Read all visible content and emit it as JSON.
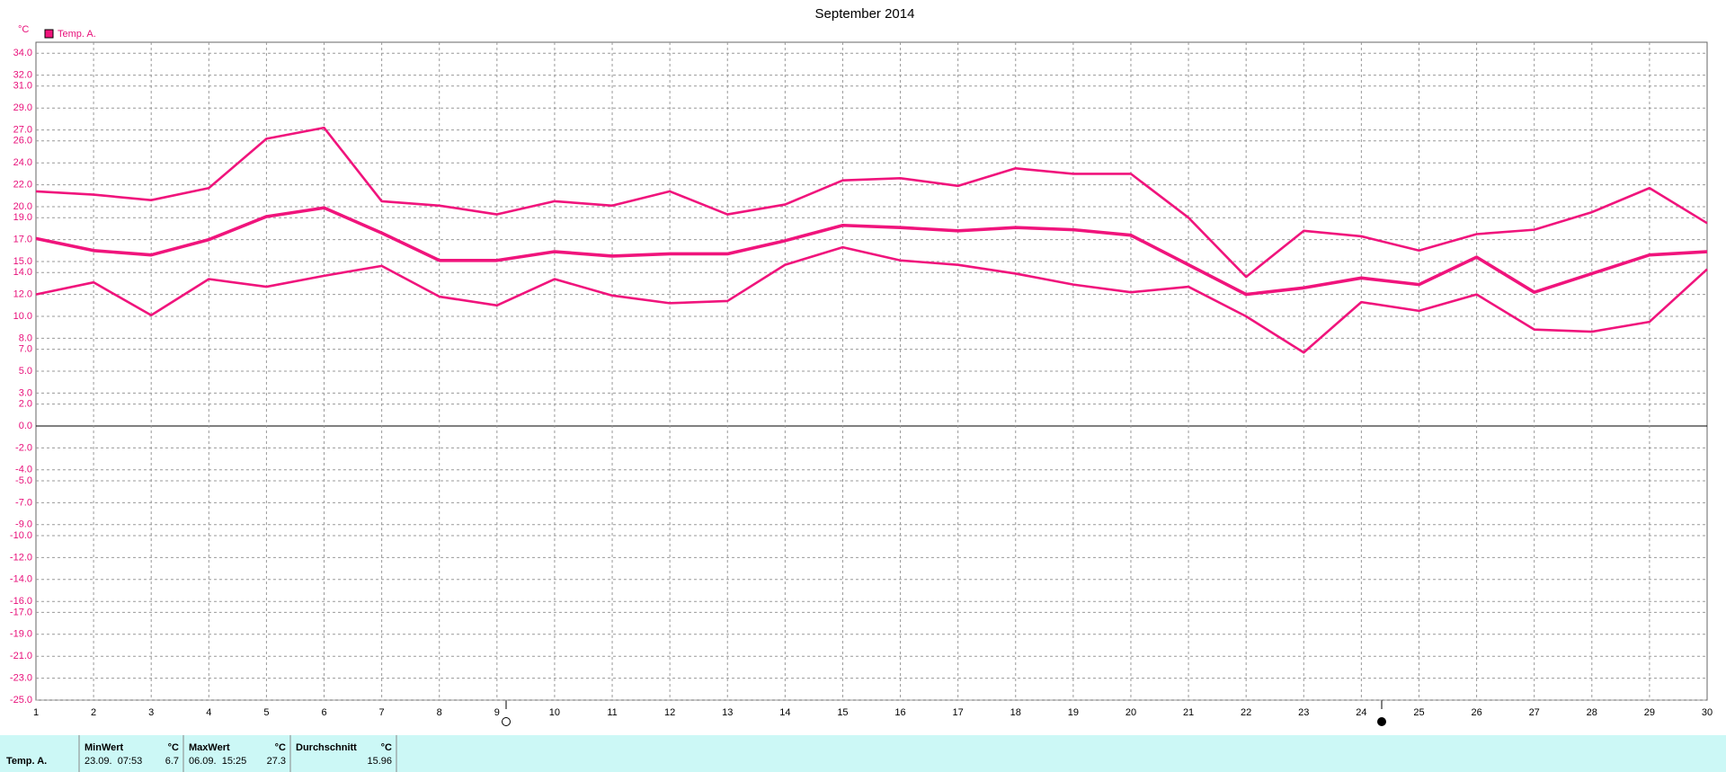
{
  "chart_data": {
    "type": "line",
    "title": "September 2014",
    "unit": "°C",
    "x": [
      1,
      2,
      3,
      4,
      5,
      6,
      7,
      8,
      9,
      10,
      11,
      12,
      13,
      14,
      15,
      16,
      17,
      18,
      19,
      20,
      21,
      22,
      23,
      24,
      25,
      26,
      27,
      28,
      29,
      30
    ],
    "series": [
      {
        "name": "Temp. A.",
        "color": "#f0147c",
        "values": [
          17.1,
          16.0,
          15.6,
          17.0,
          19.1,
          19.9,
          17.6,
          15.1,
          15.1,
          15.9,
          15.5,
          15.7,
          15.7,
          16.9,
          18.3,
          18.1,
          17.8,
          18.1,
          17.9,
          17.4,
          14.7,
          12.0,
          12.6,
          13.5,
          12.9,
          15.4,
          12.2,
          13.9,
          15.6,
          15.9
        ],
        "max_values": [
          21.4,
          21.1,
          20.6,
          21.7,
          26.2,
          27.2,
          20.5,
          20.1,
          19.3,
          20.5,
          20.1,
          21.4,
          19.3,
          20.2,
          22.4,
          22.6,
          21.9,
          23.5,
          23.0,
          23.0,
          19.0,
          13.6,
          17.8,
          17.3,
          16.0,
          17.5,
          17.9,
          19.5,
          21.7,
          18.5
        ],
        "min_values": [
          12.0,
          13.1,
          10.1,
          13.4,
          12.7,
          13.7,
          14.6,
          11.8,
          11.0,
          13.4,
          11.9,
          11.2,
          11.4,
          14.7,
          16.3,
          15.1,
          14.7,
          13.9,
          12.9,
          12.2,
          12.7,
          10.0,
          6.7,
          11.3,
          10.5,
          12.0,
          8.8,
          8.6,
          9.5,
          14.3
        ]
      }
    ],
    "xlim": [
      1,
      30
    ],
    "xticks": [
      1,
      2,
      3,
      4,
      5,
      6,
      7,
      8,
      9,
      10,
      11,
      12,
      13,
      14,
      15,
      16,
      17,
      18,
      19,
      20,
      21,
      22,
      23,
      24,
      25,
      26,
      27,
      28,
      29,
      30
    ],
    "ylim": [
      -25,
      35
    ],
    "yticks": [
      {
        "value": 34,
        "label": "34.0"
      },
      {
        "value": 32,
        "label": "32.0"
      },
      {
        "value": 31,
        "label": "31.0"
      },
      {
        "value": 29,
        "label": "29.0"
      },
      {
        "value": 27,
        "label": "27.0"
      },
      {
        "value": 26,
        "label": "26.0"
      },
      {
        "value": 24,
        "label": "24.0"
      },
      {
        "value": 22,
        "label": "22.0"
      },
      {
        "value": 20,
        "label": "20.0"
      },
      {
        "value": 19,
        "label": "19.0"
      },
      {
        "value": 17,
        "label": "17.0"
      },
      {
        "value": 15,
        "label": "15.0"
      },
      {
        "value": 14,
        "label": "14.0"
      },
      {
        "value": 12,
        "label": "12.0"
      },
      {
        "value": 10,
        "label": "10.0"
      },
      {
        "value": 8,
        "label": "8.0"
      },
      {
        "value": 7,
        "label": "7.0"
      },
      {
        "value": 5,
        "label": "5.0"
      },
      {
        "value": 3,
        "label": "3.0"
      },
      {
        "value": 2,
        "label": "2.0"
      },
      {
        "value": 0,
        "label": "0.0"
      },
      {
        "value": -2,
        "label": "-2.0"
      },
      {
        "value": -4,
        "label": "-4.0"
      },
      {
        "value": -5,
        "label": "-5.0"
      },
      {
        "value": -7,
        "label": "-7.0"
      },
      {
        "value": -9,
        "label": "-9.0"
      },
      {
        "value": -10,
        "label": "-10.0"
      },
      {
        "value": -12,
        "label": "-12.0"
      },
      {
        "value": -14,
        "label": "-14.0"
      },
      {
        "value": -16,
        "label": "-16.0"
      },
      {
        "value": -17,
        "label": "-17.0"
      },
      {
        "value": -19,
        "label": "-19.0"
      },
      {
        "value": -21,
        "label": "-21.0"
      },
      {
        "value": -23,
        "label": "-23.0"
      },
      {
        "value": -25,
        "label": "-25.0"
      }
    ],
    "grid": true
  },
  "table": {
    "row_label": "Temp. A.",
    "columns": [
      {
        "header": "MinWert",
        "unit": "°C",
        "time": "23.09.  07:53",
        "value": 6.7
      },
      {
        "header": "MaxWert",
        "unit": "°C",
        "time": "06.09.  15:25",
        "value": 27.3
      },
      {
        "header": "Durchschnitt",
        "unit": "°C",
        "value": 15.96
      }
    ]
  }
}
